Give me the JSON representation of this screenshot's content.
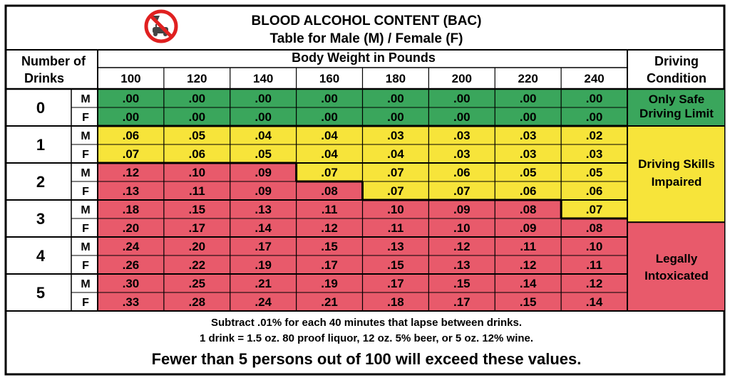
{
  "header": {
    "title": "BLOOD ALCOHOL CONTENT (BAC)",
    "subtitle": "Table for Male (M) / Female (F)",
    "logo_icon": "no-drinking-and-driving-icon"
  },
  "columns": {
    "drinks_header_line1": "Number of",
    "drinks_header_line2": "Drinks",
    "weight_header": "Body Weight in Pounds",
    "condition_header_line1": "Driving",
    "condition_header_line2": "Condition",
    "weights": [
      "100",
      "120",
      "140",
      "160",
      "180",
      "200",
      "220",
      "240"
    ]
  },
  "sex_labels": {
    "male": "M",
    "female": "F"
  },
  "rows": [
    {
      "drinks": "0",
      "M": [
        ".00",
        ".00",
        ".00",
        ".00",
        ".00",
        ".00",
        ".00",
        ".00"
      ],
      "F": [
        ".00",
        ".00",
        ".00",
        ".00",
        ".00",
        ".00",
        ".00",
        ".00"
      ]
    },
    {
      "drinks": "1",
      "M": [
        ".06",
        ".05",
        ".04",
        ".04",
        ".03",
        ".03",
        ".03",
        ".02"
      ],
      "F": [
        ".07",
        ".06",
        ".05",
        ".04",
        ".04",
        ".03",
        ".03",
        ".03"
      ]
    },
    {
      "drinks": "2",
      "M": [
        ".12",
        ".10",
        ".09",
        ".07",
        ".07",
        ".06",
        ".05",
        ".05"
      ],
      "F": [
        ".13",
        ".11",
        ".09",
        ".08",
        ".07",
        ".07",
        ".06",
        ".06"
      ]
    },
    {
      "drinks": "3",
      "M": [
        ".18",
        ".15",
        ".13",
        ".11",
        ".10",
        ".09",
        ".08",
        ".07"
      ],
      "F": [
        ".20",
        ".17",
        ".14",
        ".12",
        ".11",
        ".10",
        ".09",
        ".08"
      ]
    },
    {
      "drinks": "4",
      "M": [
        ".24",
        ".20",
        ".17",
        ".15",
        ".13",
        ".12",
        ".11",
        ".10"
      ],
      "F": [
        ".26",
        ".22",
        ".19",
        ".17",
        ".15",
        ".13",
        ".12",
        ".11"
      ]
    },
    {
      "drinks": "5",
      "M": [
        ".30",
        ".25",
        ".21",
        ".19",
        ".17",
        ".15",
        ".14",
        ".12"
      ],
      "F": [
        ".33",
        ".28",
        ".24",
        ".21",
        ".18",
        ".17",
        ".15",
        ".14"
      ]
    }
  ],
  "conditions": [
    {
      "line1": "Only Safe",
      "line2": "Driving Limit",
      "color": "#3aa65c"
    },
    {
      "line1": "Driving Skills",
      "line2": "Impaired",
      "color": "#f7e43a"
    },
    {
      "line1": "Legally",
      "line2": "Intoxicated",
      "color": "#e85a6b"
    }
  ],
  "footer": {
    "line1": "Subtract .01% for each 40 minutes that lapse between drinks.",
    "line2": "1 drink = 1.5 oz. 80 proof liquor, 12 oz. 5% beer, or 5 oz. 12% wine.",
    "line3": "Fewer than 5 persons out of 100 will exceed these values."
  },
  "colors": {
    "safe": "#3aa65c",
    "impaired": "#f7e43a",
    "intoxicated": "#e85a6b",
    "border": "#000000",
    "background": "#ffffff"
  }
}
